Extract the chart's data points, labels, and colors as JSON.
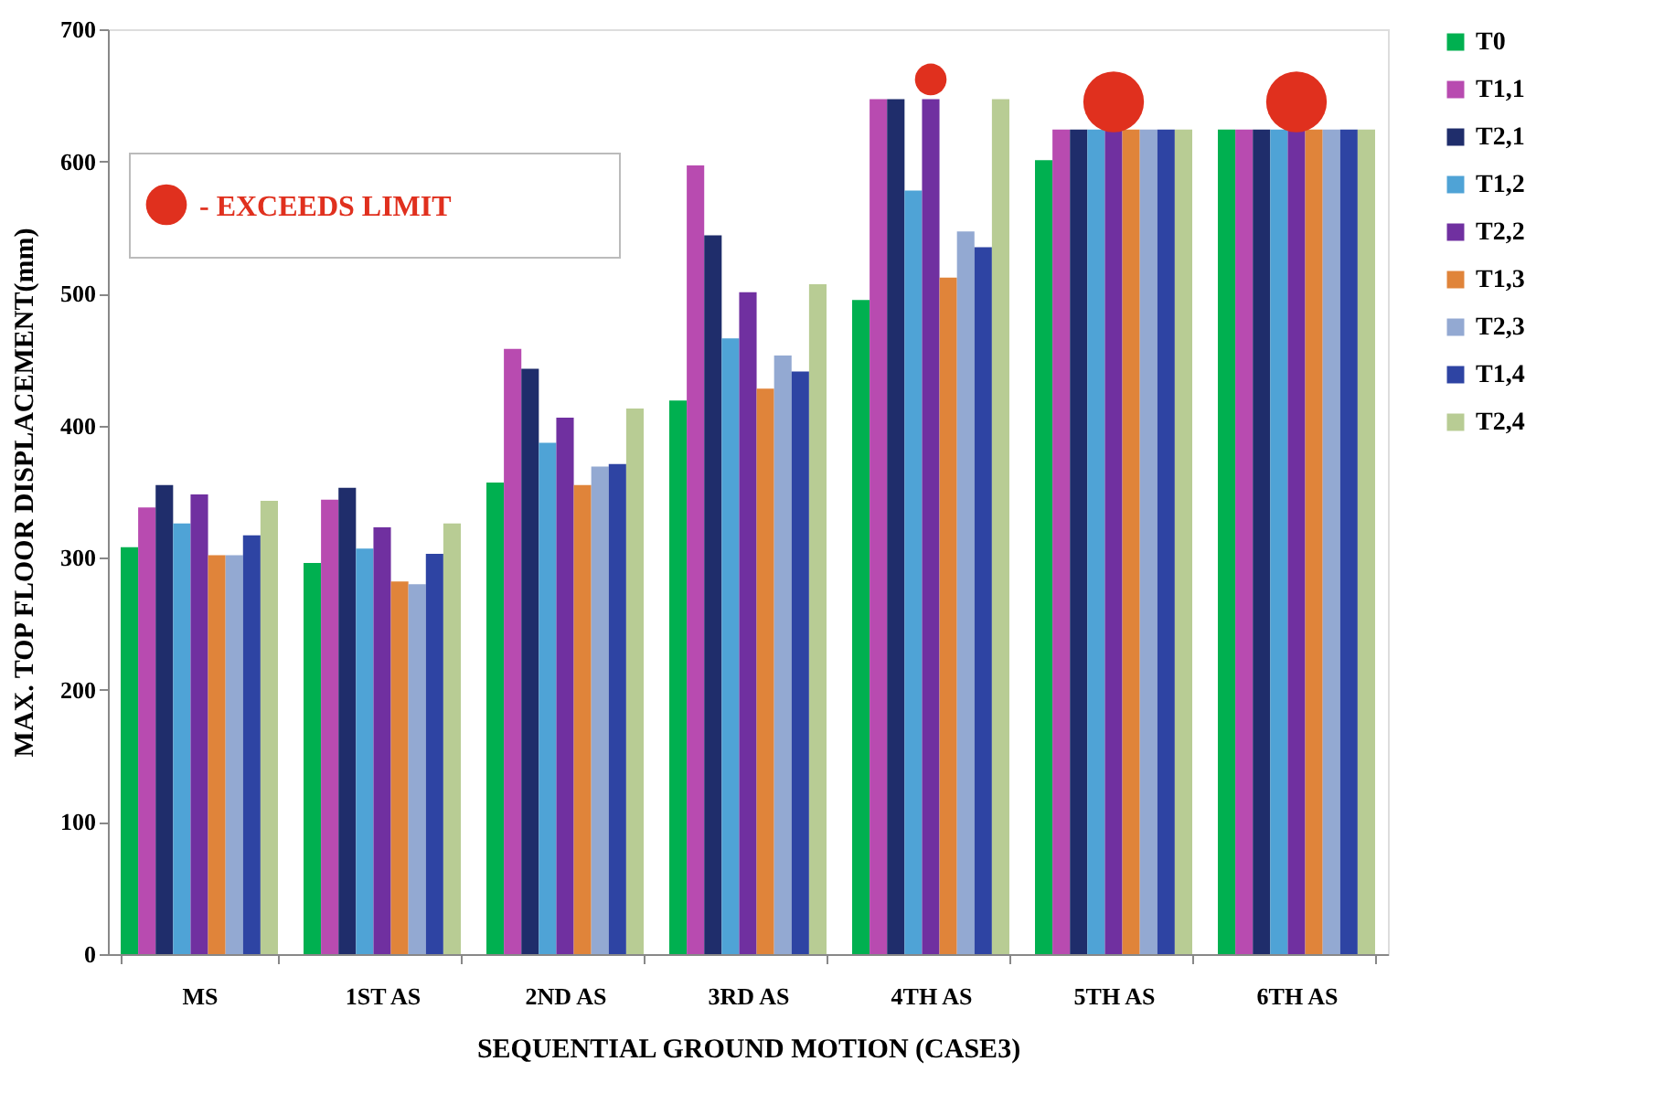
{
  "chart_data": {
    "type": "bar",
    "xlabel": "SEQUENTIAL GROUND MOTION (CASE3)",
    "ylabel": "MAX.  TOP FLOOR  DISPLACEMENT(mm)",
    "categories": [
      "MS",
      "1ST AS",
      "2ND AS",
      "3RD AS",
      "4TH AS",
      "5TH AS",
      "6TH AS"
    ],
    "series": [
      {
        "name": "T0",
        "color": "#00b050",
        "values": [
          308,
          296,
          357,
          419,
          495,
          601,
          624
        ]
      },
      {
        "name": "T1,1",
        "color": "#b84bb0",
        "values": [
          338,
          344,
          458,
          597,
          647,
          624,
          624
        ]
      },
      {
        "name": "T2,1",
        "color": "#1f2d6b",
        "values": [
          355,
          353,
          443,
          544,
          647,
          624,
          624
        ]
      },
      {
        "name": "T1,2",
        "color": "#4fa3d6",
        "values": [
          326,
          307,
          387,
          466,
          578,
          624,
          624
        ]
      },
      {
        "name": "T2,2",
        "color": "#7030a0",
        "values": [
          348,
          323,
          406,
          501,
          647,
          624,
          624
        ]
      },
      {
        "name": "T1,3",
        "color": "#e0843a",
        "values": [
          302,
          282,
          355,
          428,
          512,
          624,
          624
        ]
      },
      {
        "name": "T2,3",
        "color": "#93a9d2",
        "values": [
          302,
          280,
          369,
          453,
          547,
          624,
          624
        ]
      },
      {
        "name": "T1,4",
        "color": "#2e44a3",
        "values": [
          317,
          303,
          371,
          441,
          535,
          624,
          624
        ]
      },
      {
        "name": "T2,4",
        "color": "#b8cc94",
        "values": [
          343,
          326,
          413,
          507,
          647,
          624,
          624
        ]
      },
      {
        "name": "- EXCEEDS LIMIT",
        "type": "scatter",
        "color": "#e0301e",
        "x": [
          "4TH AS"
        ],
        "values": [
          662
        ]
      },
      {
        "type": "scatter",
        "color": "#e0301e",
        "x": [
          "5TH AS",
          "6TH AS"
        ],
        "values": [
          645,
          645
        ]
      }
    ],
    "ylim": [
      0,
      700
    ],
    "yticks": [
      0,
      100,
      200,
      300,
      400,
      500,
      600,
      700
    ],
    "grid": false,
    "legend": "right"
  }
}
